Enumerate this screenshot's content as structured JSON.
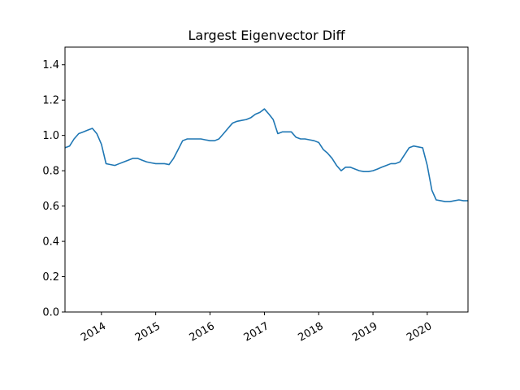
{
  "chart_data": {
    "type": "line",
    "title": "Largest Eigenvector Diff",
    "xlabel": "",
    "ylabel": "",
    "xlim": [
      "2013-05-01",
      "2020-10-01"
    ],
    "ylim": [
      0,
      1.5
    ],
    "yticks": [
      0.0,
      0.2,
      0.4,
      0.6,
      0.8,
      1.0,
      1.2,
      1.4
    ],
    "ytick_labels": [
      "0.0",
      "0.2",
      "0.4",
      "0.6",
      "0.8",
      "1.0",
      "1.2",
      "1.4"
    ],
    "xticks": [
      "2014-01-01",
      "2015-01-01",
      "2016-01-01",
      "2017-01-01",
      "2018-01-01",
      "2019-01-01",
      "2020-01-01"
    ],
    "xtick_labels": [
      "2014",
      "2015",
      "2016",
      "2017",
      "2018",
      "2019",
      "2020"
    ],
    "grid": false,
    "legend": "none",
    "series": [
      {
        "color": "#1f77b4",
        "x": [
          "2013-05-01",
          "2013-06-01",
          "2013-07-01",
          "2013-08-01",
          "2013-09-01",
          "2013-10-01",
          "2013-11-01",
          "2013-12-01",
          "2014-01-01",
          "2014-02-01",
          "2014-03-01",
          "2014-04-01",
          "2014-05-01",
          "2014-06-01",
          "2014-07-01",
          "2014-08-01",
          "2014-09-01",
          "2014-10-01",
          "2014-11-01",
          "2014-12-01",
          "2015-01-01",
          "2015-02-01",
          "2015-03-01",
          "2015-04-01",
          "2015-05-01",
          "2015-06-01",
          "2015-07-01",
          "2015-08-01",
          "2015-09-01",
          "2015-10-01",
          "2015-11-01",
          "2015-12-01",
          "2016-01-01",
          "2016-02-01",
          "2016-03-01",
          "2016-04-01",
          "2016-05-01",
          "2016-06-01",
          "2016-07-01",
          "2016-08-01",
          "2016-09-01",
          "2016-10-01",
          "2016-11-01",
          "2016-12-01",
          "2017-01-01",
          "2017-02-01",
          "2017-03-01",
          "2017-04-01",
          "2017-05-01",
          "2017-06-01",
          "2017-07-01",
          "2017-08-01",
          "2017-09-01",
          "2017-10-01",
          "2017-11-01",
          "2017-12-01",
          "2018-01-01",
          "2018-02-01",
          "2018-03-01",
          "2018-04-01",
          "2018-05-01",
          "2018-06-01",
          "2018-07-01",
          "2018-08-01",
          "2018-09-01",
          "2018-10-01",
          "2018-11-01",
          "2018-12-01",
          "2019-01-01",
          "2019-02-01",
          "2019-03-01",
          "2019-04-01",
          "2019-05-01",
          "2019-06-01",
          "2019-07-01",
          "2019-08-01",
          "2019-09-01",
          "2019-10-01",
          "2019-11-01",
          "2019-12-01",
          "2020-01-01",
          "2020-02-01",
          "2020-03-01",
          "2020-04-01",
          "2020-05-01",
          "2020-06-01",
          "2020-07-01",
          "2020-08-01",
          "2020-09-01",
          "2020-10-01"
        ],
        "values": [
          0.93,
          0.94,
          0.98,
          1.01,
          1.02,
          1.03,
          1.04,
          1.01,
          0.95,
          0.84,
          0.835,
          0.83,
          0.84,
          0.85,
          0.86,
          0.87,
          0.87,
          0.86,
          0.85,
          0.845,
          0.84,
          0.84,
          0.84,
          0.835,
          0.87,
          0.92,
          0.97,
          0.98,
          0.98,
          0.98,
          0.98,
          0.975,
          0.97,
          0.97,
          0.98,
          1.01,
          1.04,
          1.07,
          1.08,
          1.085,
          1.09,
          1.1,
          1.12,
          1.13,
          1.15,
          1.12,
          1.09,
          1.01,
          1.02,
          1.02,
          1.02,
          0.99,
          0.98,
          0.98,
          0.975,
          0.97,
          0.96,
          0.92,
          0.9,
          0.87,
          0.83,
          0.8,
          0.82,
          0.82,
          0.81,
          0.8,
          0.795,
          0.795,
          0.8,
          0.81,
          0.82,
          0.83,
          0.84,
          0.84,
          0.85,
          0.89,
          0.93,
          0.94,
          0.935,
          0.93,
          0.83,
          0.69,
          0.635,
          0.63,
          0.625,
          0.625,
          0.63,
          0.635,
          0.63,
          0.63
        ]
      }
    ]
  }
}
